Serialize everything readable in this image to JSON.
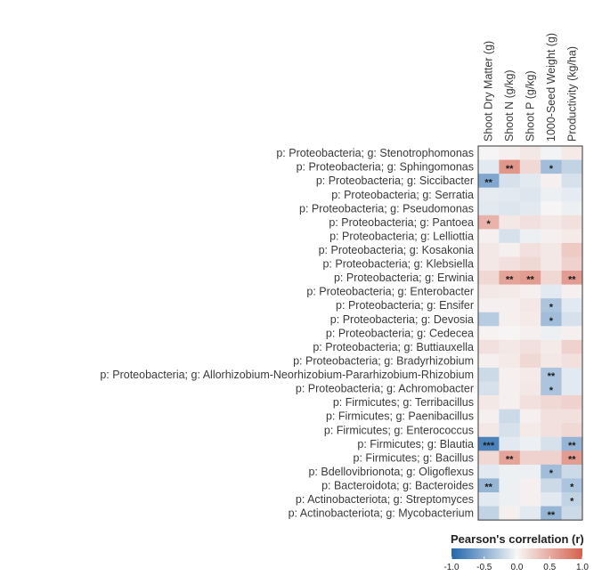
{
  "chart_data": {
    "type": "heatmap",
    "columns": [
      "Shoot Dry Matter (g)",
      "Shoot N (g/kg)",
      "Shoot P (g/kg)",
      "1000-Seed Weight (g)",
      "Productivity (kg/ha)"
    ],
    "rows": [
      "p: Proteobacteria; g: Stenotrophomonas",
      "p: Proteobacteria; g: Sphingomonas",
      "p: Proteobacteria; g: Siccibacter",
      "p: Proteobacteria; g: Serratia",
      "p: Proteobacteria; g: Pseudomonas",
      "p: Proteobacteria; g: Pantoea",
      "p: Proteobacteria; g: Lelliottia",
      "p: Proteobacteria; g: Kosakonia",
      "p: Proteobacteria; g: Klebsiella",
      "p: Proteobacteria; g: Erwinia",
      "p: Proteobacteria; g: Enterobacter",
      "p: Proteobacteria; g: Ensifer",
      "p: Proteobacteria; g: Devosia",
      "p: Proteobacteria; g: Cedecea",
      "p: Proteobacteria; g: Buttiauxella",
      "p: Proteobacteria; g: Bradyrhizobium",
      "p: Proteobacteria; g: Allorhizobium-Neorhizobium-Pararhizobium-Rhizobium",
      "p: Proteobacteria; g: Achromobacter",
      "p: Firmicutes; g: Terribacillus",
      "p: Firmicutes; g: Paenibacillus",
      "p: Firmicutes; g: Enterococcus",
      "p: Firmicutes; g: Blautia",
      "p: Firmicutes; g: Bacillus",
      "p: Bdellovibrionota; g: Oligoflexus",
      "p: Bacteroidota; g: Bacteroides",
      "p: Actinobacteriota; g: Streptomyces",
      "p: Actinobacteriota; g: Mycobacterium"
    ],
    "values": [
      [
        0.02,
        0.05,
        0.1,
        -0.03,
        0.08
      ],
      [
        -0.1,
        0.65,
        0.2,
        -0.4,
        -0.25
      ],
      [
        -0.55,
        -0.15,
        -0.1,
        0.05,
        -0.15
      ],
      [
        -0.08,
        -0.1,
        -0.12,
        -0.05,
        -0.08
      ],
      [
        -0.1,
        -0.12,
        -0.1,
        0.02,
        -0.05
      ],
      [
        0.45,
        0.1,
        0.15,
        0.1,
        0.15
      ],
      [
        0.05,
        -0.15,
        -0.05,
        0.05,
        0.08
      ],
      [
        0.1,
        0.05,
        0.15,
        0.1,
        0.3
      ],
      [
        0.1,
        0.15,
        0.2,
        0.1,
        0.25
      ],
      [
        0.2,
        0.55,
        0.6,
        0.2,
        0.6
      ],
      [
        0.1,
        0.08,
        0.05,
        -0.1,
        0.05
      ],
      [
        0.05,
        0.05,
        0.1,
        -0.35,
        -0.1
      ],
      [
        -0.3,
        0.05,
        0.08,
        -0.4,
        -0.15
      ],
      [
        0.03,
        0.02,
        0.05,
        -0.05,
        0.05
      ],
      [
        0.15,
        0.1,
        0.15,
        0.08,
        0.25
      ],
      [
        0.05,
        0.08,
        0.2,
        0.1,
        0.15
      ],
      [
        -0.2,
        0.05,
        0.08,
        -0.35,
        -0.1
      ],
      [
        -0.15,
        0.05,
        0.1,
        -0.35,
        -0.1
      ],
      [
        0.1,
        0.05,
        0.15,
        0.2,
        0.25
      ],
      [
        0.05,
        -0.2,
        0.05,
        0.15,
        0.15
      ],
      [
        0.1,
        -0.15,
        0.08,
        0.15,
        0.2
      ],
      [
        -0.8,
        -0.1,
        -0.05,
        -0.15,
        -0.45
      ],
      [
        0.2,
        0.55,
        0.25,
        0.25,
        0.6
      ],
      [
        -0.1,
        -0.05,
        -0.05,
        -0.4,
        -0.2
      ],
      [
        -0.45,
        -0.05,
        0.05,
        -0.2,
        -0.35
      ],
      [
        -0.1,
        -0.05,
        0.05,
        -0.1,
        -0.25
      ],
      [
        -0.25,
        0.05,
        -0.1,
        -0.45,
        -0.2
      ]
    ],
    "significance": [
      [
        "",
        "",
        "",
        "",
        ""
      ],
      [
        "",
        "**",
        "",
        "*",
        ""
      ],
      [
        "**",
        "",
        "",
        "",
        ""
      ],
      [
        "",
        "",
        "",
        "",
        ""
      ],
      [
        "",
        "",
        "",
        "",
        ""
      ],
      [
        "*",
        "",
        "",
        "",
        ""
      ],
      [
        "",
        "",
        "",
        "",
        ""
      ],
      [
        "",
        "",
        "",
        "",
        ""
      ],
      [
        "",
        "",
        "",
        "",
        ""
      ],
      [
        "",
        "**",
        "**",
        "",
        "**"
      ],
      [
        "",
        "",
        "",
        "",
        ""
      ],
      [
        "",
        "",
        "",
        "*",
        ""
      ],
      [
        "",
        "",
        "",
        "*",
        ""
      ],
      [
        "",
        "",
        "",
        "",
        ""
      ],
      [
        "",
        "",
        "",
        "",
        ""
      ],
      [
        "",
        "",
        "",
        "",
        ""
      ],
      [
        "",
        "",
        "",
        "**",
        ""
      ],
      [
        "",
        "",
        "",
        "*",
        ""
      ],
      [
        "",
        "",
        "",
        "",
        ""
      ],
      [
        "",
        "",
        "",
        "",
        ""
      ],
      [
        "",
        "",
        "",
        "",
        ""
      ],
      [
        "***",
        "",
        "",
        "",
        "**"
      ],
      [
        "",
        "**",
        "",
        "",
        "**"
      ],
      [
        "",
        "",
        "",
        "*",
        ""
      ],
      [
        "**",
        "",
        "",
        "",
        "*"
      ],
      [
        "",
        "",
        "",
        "",
        "*"
      ],
      [
        "",
        "",
        "",
        "**",
        ""
      ]
    ],
    "legend": {
      "title": "Pearson's correlation (r)",
      "ticks": [
        "-1.0",
        "-0.5",
        "0.0",
        "0.5",
        "1.0"
      ],
      "range": [
        -1,
        1
      ]
    },
    "colors": {
      "low": "#2166ac",
      "mid": "#f7f7f7",
      "high": "#d6604d",
      "border": "#333333"
    }
  }
}
